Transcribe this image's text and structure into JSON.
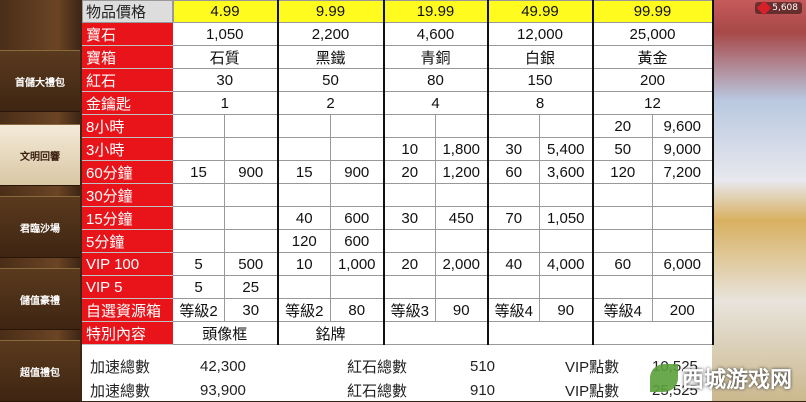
{
  "sidebar": {
    "items": [
      {
        "label": "首儲大禮包",
        "active": false
      },
      {
        "label": "文明回響",
        "active": true
      },
      {
        "label": "君臨沙場",
        "active": false
      },
      {
        "label": "儲值豪禮",
        "active": false
      },
      {
        "label": "超值禮包",
        "active": false
      }
    ]
  },
  "currency": {
    "icon": "red-gem-icon",
    "value": "5,608"
  },
  "table": {
    "header": {
      "label": "物品價格",
      "prices": [
        "4.99",
        "9.99",
        "19.99",
        "49.99",
        "99.99"
      ]
    },
    "merged_rows": [
      {
        "label": "寶石",
        "values": [
          "1,050",
          "2,200",
          "4,600",
          "12,000",
          "25,000"
        ]
      },
      {
        "label": "寶箱",
        "values": [
          "石質",
          "黑鐵",
          "青銅",
          "白銀",
          "黃金"
        ]
      },
      {
        "label": "紅石",
        "values": [
          "30",
          "50",
          "80",
          "150",
          "200"
        ]
      },
      {
        "label": "金鑰匙",
        "values": [
          "1",
          "2",
          "4",
          "8",
          "12"
        ]
      }
    ],
    "split_rows": [
      {
        "label": "8小時",
        "values": [
          "",
          "",
          "",
          "",
          "",
          "",
          "",
          "",
          "20",
          "9,600"
        ]
      },
      {
        "label": "3小時",
        "values": [
          "",
          "",
          "",
          "",
          "10",
          "1,800",
          "30",
          "5,400",
          "50",
          "9,000"
        ]
      },
      {
        "label": "60分鐘",
        "values": [
          "15",
          "900",
          "15",
          "900",
          "20",
          "1,200",
          "60",
          "3,600",
          "120",
          "7,200"
        ]
      },
      {
        "label": "30分鐘",
        "values": [
          "",
          "",
          "",
          "",
          "",
          "",
          "",
          "",
          "",
          ""
        ]
      },
      {
        "label": "15分鐘",
        "values": [
          "",
          "",
          "40",
          "600",
          "30",
          "450",
          "70",
          "1,050",
          "",
          ""
        ]
      },
      {
        "label": "5分鐘",
        "values": [
          "",
          "",
          "120",
          "600",
          "",
          "",
          "",
          "",
          "",
          ""
        ]
      },
      {
        "label": "VIP 100",
        "values": [
          "5",
          "500",
          "10",
          "1,000",
          "20",
          "2,000",
          "40",
          "4,000",
          "60",
          "6,000"
        ]
      },
      {
        "label": "VIP 5",
        "values": [
          "5",
          "25",
          "",
          "",
          "",
          "",
          "",
          "",
          "",
          ""
        ]
      },
      {
        "label": "自選資源箱",
        "values": [
          "等級2",
          "30",
          "等級2",
          "80",
          "等級3",
          "90",
          "等級4",
          "90",
          "等級4",
          "200"
        ]
      }
    ],
    "special_row": {
      "label": "特別內容",
      "values": [
        "頭像框",
        "銘牌",
        "",
        "",
        ""
      ]
    }
  },
  "summary": [
    {
      "speed_label": "加速總數",
      "speed": "42,300",
      "redstone_label": "紅石總數",
      "redstone": "510",
      "vip_label": "VIP點數",
      "vip": "10,525"
    },
    {
      "speed_label": "加速總數",
      "speed": "93,900",
      "redstone_label": "紅石總數",
      "redstone": "910",
      "vip_label": "VIP點數",
      "vip": "25,525"
    }
  ],
  "watermark": {
    "text": "西城游戏网"
  }
}
